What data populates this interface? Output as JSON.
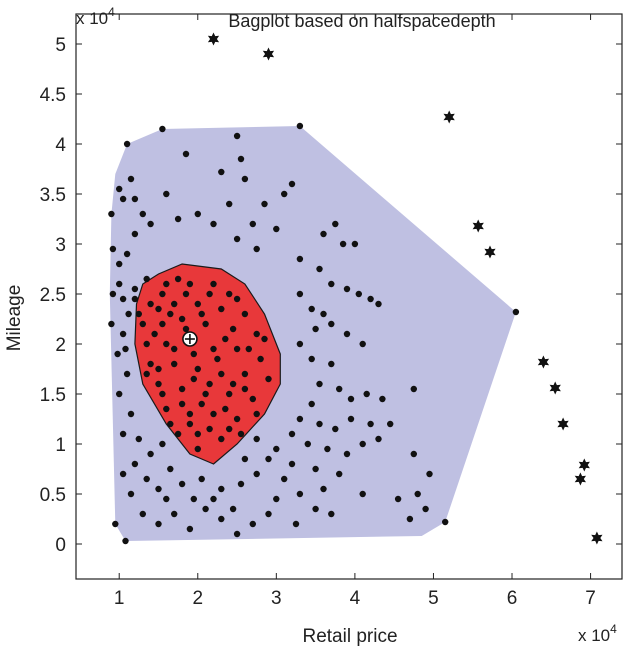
{
  "chart_data": {
    "type": "scatter",
    "title": "Bagplot based on halfspacedepth",
    "xlabel": "Retail price",
    "ylabel": "Mileage",
    "x_multiplier": {
      "base": "x 10",
      "exp": "4"
    },
    "y_multiplier": {
      "base": "x 10",
      "exp": "4"
    },
    "xlim": [
      0.45,
      7.4
    ],
    "ylim": [
      -0.35,
      5.3
    ],
    "x_ticks": [
      1,
      2,
      3,
      4,
      5,
      6,
      7
    ],
    "x_tick_labels": [
      "1",
      "2",
      "3",
      "4",
      "5",
      "6",
      "7"
    ],
    "y_ticks": [
      0,
      0.5,
      1,
      1.5,
      2,
      2.5,
      3,
      3.5,
      4,
      4.5,
      5
    ],
    "y_tick_labels": [
      "0",
      "0.5",
      "1",
      "1.5",
      "2",
      "2.5",
      "3",
      "3.5",
      "4",
      "4.5",
      "5"
    ],
    "grid": false,
    "colors": {
      "fence": "#bfc0e2",
      "bag": "#e8383a",
      "bag_edge": "#1a1a1a",
      "points": "#111111",
      "depth_median_fill": "#ffffff"
    },
    "fence_polygon": [
      [
        1.08,
        0.03
      ],
      [
        0.95,
        0.2
      ],
      [
        0.88,
        2.5
      ],
      [
        0.9,
        3.3
      ],
      [
        0.95,
        3.7
      ],
      [
        1.1,
        4.0
      ],
      [
        1.55,
        4.15
      ],
      [
        3.3,
        4.18
      ],
      [
        6.05,
        2.32
      ],
      [
        5.15,
        0.22
      ],
      [
        4.85,
        0.08
      ]
    ],
    "bag_polygon": [
      [
        2.2,
        0.8
      ],
      [
        1.9,
        0.9
      ],
      [
        1.6,
        1.2
      ],
      [
        1.3,
        1.6
      ],
      [
        1.2,
        2.0
      ],
      [
        1.22,
        2.4
      ],
      [
        1.3,
        2.6
      ],
      [
        1.5,
        2.7
      ],
      [
        1.8,
        2.8
      ],
      [
        2.3,
        2.75
      ],
      [
        2.6,
        2.6
      ],
      [
        2.85,
        2.3
      ],
      [
        3.05,
        1.9
      ],
      [
        3.05,
        1.6
      ],
      [
        2.85,
        1.3
      ],
      [
        2.5,
        1.0
      ]
    ],
    "depth_median": [
      1.9,
      2.05
    ],
    "outliers": [
      [
        2.2,
        5.05
      ],
      [
        2.9,
        4.9
      ],
      [
        5.2,
        4.27
      ],
      [
        5.57,
        3.18
      ],
      [
        5.72,
        2.92
      ],
      [
        6.4,
        1.82
      ],
      [
        6.55,
        1.56
      ],
      [
        6.65,
        1.2
      ],
      [
        6.92,
        0.79
      ],
      [
        6.87,
        0.65
      ],
      [
        7.08,
        0.06
      ]
    ],
    "points": [
      [
        1.08,
        0.03
      ],
      [
        0.95,
        0.2
      ],
      [
        0.9,
        3.3
      ],
      [
        1.1,
        4.0
      ],
      [
        1.55,
        4.15
      ],
      [
        3.3,
        4.18
      ],
      [
        6.05,
        2.32
      ],
      [
        5.15,
        0.22
      ],
      [
        1.85,
        3.9
      ],
      [
        2.5,
        4.08
      ],
      [
        2.55,
        3.85
      ],
      [
        2.3,
        3.72
      ],
      [
        2.6,
        3.65
      ],
      [
        3.2,
        3.6
      ],
      [
        3.1,
        3.5
      ],
      [
        2.85,
        3.4
      ],
      [
        1.0,
        3.55
      ],
      [
        1.05,
        3.45
      ],
      [
        1.15,
        3.65
      ],
      [
        1.2,
        3.45
      ],
      [
        1.3,
        3.3
      ],
      [
        1.4,
        3.2
      ],
      [
        1.6,
        3.5
      ],
      [
        1.75,
        3.25
      ],
      [
        2.0,
        3.3
      ],
      [
        2.2,
        3.2
      ],
      [
        2.4,
        3.4
      ],
      [
        2.7,
        3.2
      ],
      [
        3.0,
        3.15
      ],
      [
        3.75,
        3.2
      ],
      [
        3.85,
        3.0
      ],
      [
        4.0,
        3.0
      ],
      [
        3.6,
        3.1
      ],
      [
        0.92,
        2.95
      ],
      [
        1.0,
        2.8
      ],
      [
        1.1,
        2.9
      ],
      [
        1.2,
        3.1
      ],
      [
        2.5,
        3.05
      ],
      [
        2.75,
        2.95
      ],
      [
        3.3,
        2.85
      ],
      [
        3.55,
        2.75
      ],
      [
        3.7,
        2.6
      ],
      [
        3.9,
        2.55
      ],
      [
        4.05,
        2.5
      ],
      [
        4.2,
        2.45
      ],
      [
        4.3,
        2.4
      ],
      [
        3.3,
        2.5
      ],
      [
        3.45,
        2.35
      ],
      [
        3.6,
        2.3
      ],
      [
        3.5,
        2.15
      ],
      [
        3.7,
        2.2
      ],
      [
        3.9,
        2.1
      ],
      [
        4.1,
        2.0
      ],
      [
        3.3,
        2.0
      ],
      [
        3.45,
        1.85
      ],
      [
        3.7,
        1.8
      ],
      [
        3.55,
        1.6
      ],
      [
        3.8,
        1.55
      ],
      [
        3.95,
        1.45
      ],
      [
        4.15,
        1.5
      ],
      [
        4.35,
        1.45
      ],
      [
        4.75,
        1.55
      ],
      [
        3.45,
        1.4
      ],
      [
        3.3,
        1.25
      ],
      [
        3.55,
        1.2
      ],
      [
        3.75,
        1.15
      ],
      [
        3.95,
        1.25
      ],
      [
        4.2,
        1.2
      ],
      [
        4.45,
        1.2
      ],
      [
        3.2,
        1.1
      ],
      [
        3.4,
        1.0
      ],
      [
        3.65,
        0.95
      ],
      [
        3.9,
        0.9
      ],
      [
        4.1,
        1.0
      ],
      [
        4.3,
        1.05
      ],
      [
        3.0,
        0.95
      ],
      [
        3.2,
        0.8
      ],
      [
        3.5,
        0.75
      ],
      [
        3.8,
        0.7
      ],
      [
        4.75,
        0.9
      ],
      [
        3.1,
        0.65
      ],
      [
        3.3,
        0.5
      ],
      [
        3.6,
        0.55
      ],
      [
        4.1,
        0.5
      ],
      [
        4.95,
        0.7
      ],
      [
        3.0,
        0.45
      ],
      [
        3.5,
        0.35
      ],
      [
        4.8,
        0.5
      ],
      [
        4.55,
        0.45
      ],
      [
        4.7,
        0.25
      ],
      [
        4.9,
        0.35
      ],
      [
        3.25,
        0.2
      ],
      [
        3.7,
        0.3
      ],
      [
        2.9,
        0.3
      ],
      [
        2.7,
        0.2
      ],
      [
        2.5,
        0.1
      ],
      [
        2.3,
        0.25
      ],
      [
        2.1,
        0.35
      ],
      [
        1.9,
        0.15
      ],
      [
        1.7,
        0.3
      ],
      [
        1.5,
        0.2
      ],
      [
        1.3,
        0.3
      ],
      [
        1.15,
        0.5
      ],
      [
        1.05,
        0.7
      ],
      [
        1.2,
        0.8
      ],
      [
        1.35,
        0.65
      ],
      [
        1.5,
        0.55
      ],
      [
        1.65,
        0.75
      ],
      [
        1.8,
        0.6
      ],
      [
        2.05,
        0.65
      ],
      [
        2.3,
        0.55
      ],
      [
        2.55,
        0.6
      ],
      [
        2.75,
        0.7
      ],
      [
        2.9,
        0.85
      ],
      [
        1.05,
        1.1
      ],
      [
        1.15,
        1.3
      ],
      [
        1.0,
        1.5
      ],
      [
        1.1,
        1.7
      ],
      [
        0.98,
        1.9
      ],
      [
        1.05,
        2.1
      ],
      [
        1.12,
        2.3
      ],
      [
        0.9,
        2.2
      ],
      [
        0.92,
        2.5
      ],
      [
        1.0,
        2.6
      ],
      [
        1.05,
        2.45
      ],
      [
        1.2,
        2.55
      ],
      [
        1.08,
        1.95
      ],
      [
        1.25,
        1.05
      ],
      [
        1.4,
        0.9
      ],
      [
        1.55,
        1.0
      ],
      [
        2.75,
        1.05
      ],
      [
        2.6,
        0.85
      ],
      [
        1.95,
        0.45
      ],
      [
        2.2,
        0.45
      ],
      [
        2.45,
        0.35
      ],
      [
        1.6,
        0.45
      ],
      [
        1.35,
        2.65
      ],
      [
        1.6,
        2.6
      ],
      [
        1.9,
        2.6
      ],
      [
        2.2,
        2.6
      ],
      [
        2.4,
        2.5
      ],
      [
        1.4,
        2.4
      ],
      [
        1.7,
        2.4
      ],
      [
        2.0,
        2.4
      ],
      [
        2.3,
        2.35
      ],
      [
        2.6,
        2.3
      ],
      [
        1.3,
        2.2
      ],
      [
        1.55,
        2.2
      ],
      [
        1.8,
        2.25
      ],
      [
        2.1,
        2.2
      ],
      [
        2.45,
        2.15
      ],
      [
        2.75,
        2.1
      ],
      [
        1.35,
        2.0
      ],
      [
        1.6,
        2.0
      ],
      [
        2.2,
        1.95
      ],
      [
        2.5,
        1.95
      ],
      [
        2.8,
        1.85
      ],
      [
        1.4,
        1.8
      ],
      [
        1.7,
        1.8
      ],
      [
        2.0,
        1.75
      ],
      [
        2.3,
        1.7
      ],
      [
        2.6,
        1.7
      ],
      [
        2.9,
        1.65
      ],
      [
        1.5,
        1.6
      ],
      [
        1.8,
        1.55
      ],
      [
        2.1,
        1.5
      ],
      [
        2.4,
        1.5
      ],
      [
        2.7,
        1.45
      ],
      [
        1.6,
        1.35
      ],
      [
        1.9,
        1.3
      ],
      [
        2.2,
        1.3
      ],
      [
        2.5,
        1.25
      ],
      [
        2.75,
        1.3
      ],
      [
        1.75,
        1.1
      ],
      [
        2.0,
        1.1
      ],
      [
        2.3,
        1.05
      ],
      [
        2.55,
        1.1
      ],
      [
        2.0,
        0.95
      ],
      [
        1.55,
        2.5
      ],
      [
        1.85,
        2.5
      ],
      [
        2.15,
        2.5
      ],
      [
        1.45,
        2.1
      ],
      [
        1.7,
        1.95
      ],
      [
        1.95,
        1.9
      ],
      [
        1.25,
        2.3
      ],
      [
        1.5,
        1.75
      ],
      [
        2.25,
        1.85
      ],
      [
        2.45,
        1.6
      ],
      [
        1.85,
        2.15
      ],
      [
        2.05,
        2.3
      ],
      [
        1.65,
        2.3
      ],
      [
        1.35,
        1.7
      ],
      [
        2.65,
        1.95
      ],
      [
        2.85,
        2.05
      ],
      [
        1.95,
        1.65
      ],
      [
        2.15,
        1.6
      ],
      [
        1.2,
        2.45
      ],
      [
        1.5,
        2.35
      ],
      [
        1.75,
        2.65
      ],
      [
        2.5,
        2.45
      ],
      [
        2.35,
        2.05
      ],
      [
        1.55,
        1.5
      ],
      [
        2.6,
        1.55
      ],
      [
        1.8,
        1.4
      ],
      [
        2.05,
        1.4
      ],
      [
        2.35,
        1.35
      ],
      [
        1.65,
        1.2
      ],
      [
        2.4,
        1.15
      ],
      [
        1.9,
        1.2
      ],
      [
        2.15,
        1.15
      ]
    ]
  }
}
